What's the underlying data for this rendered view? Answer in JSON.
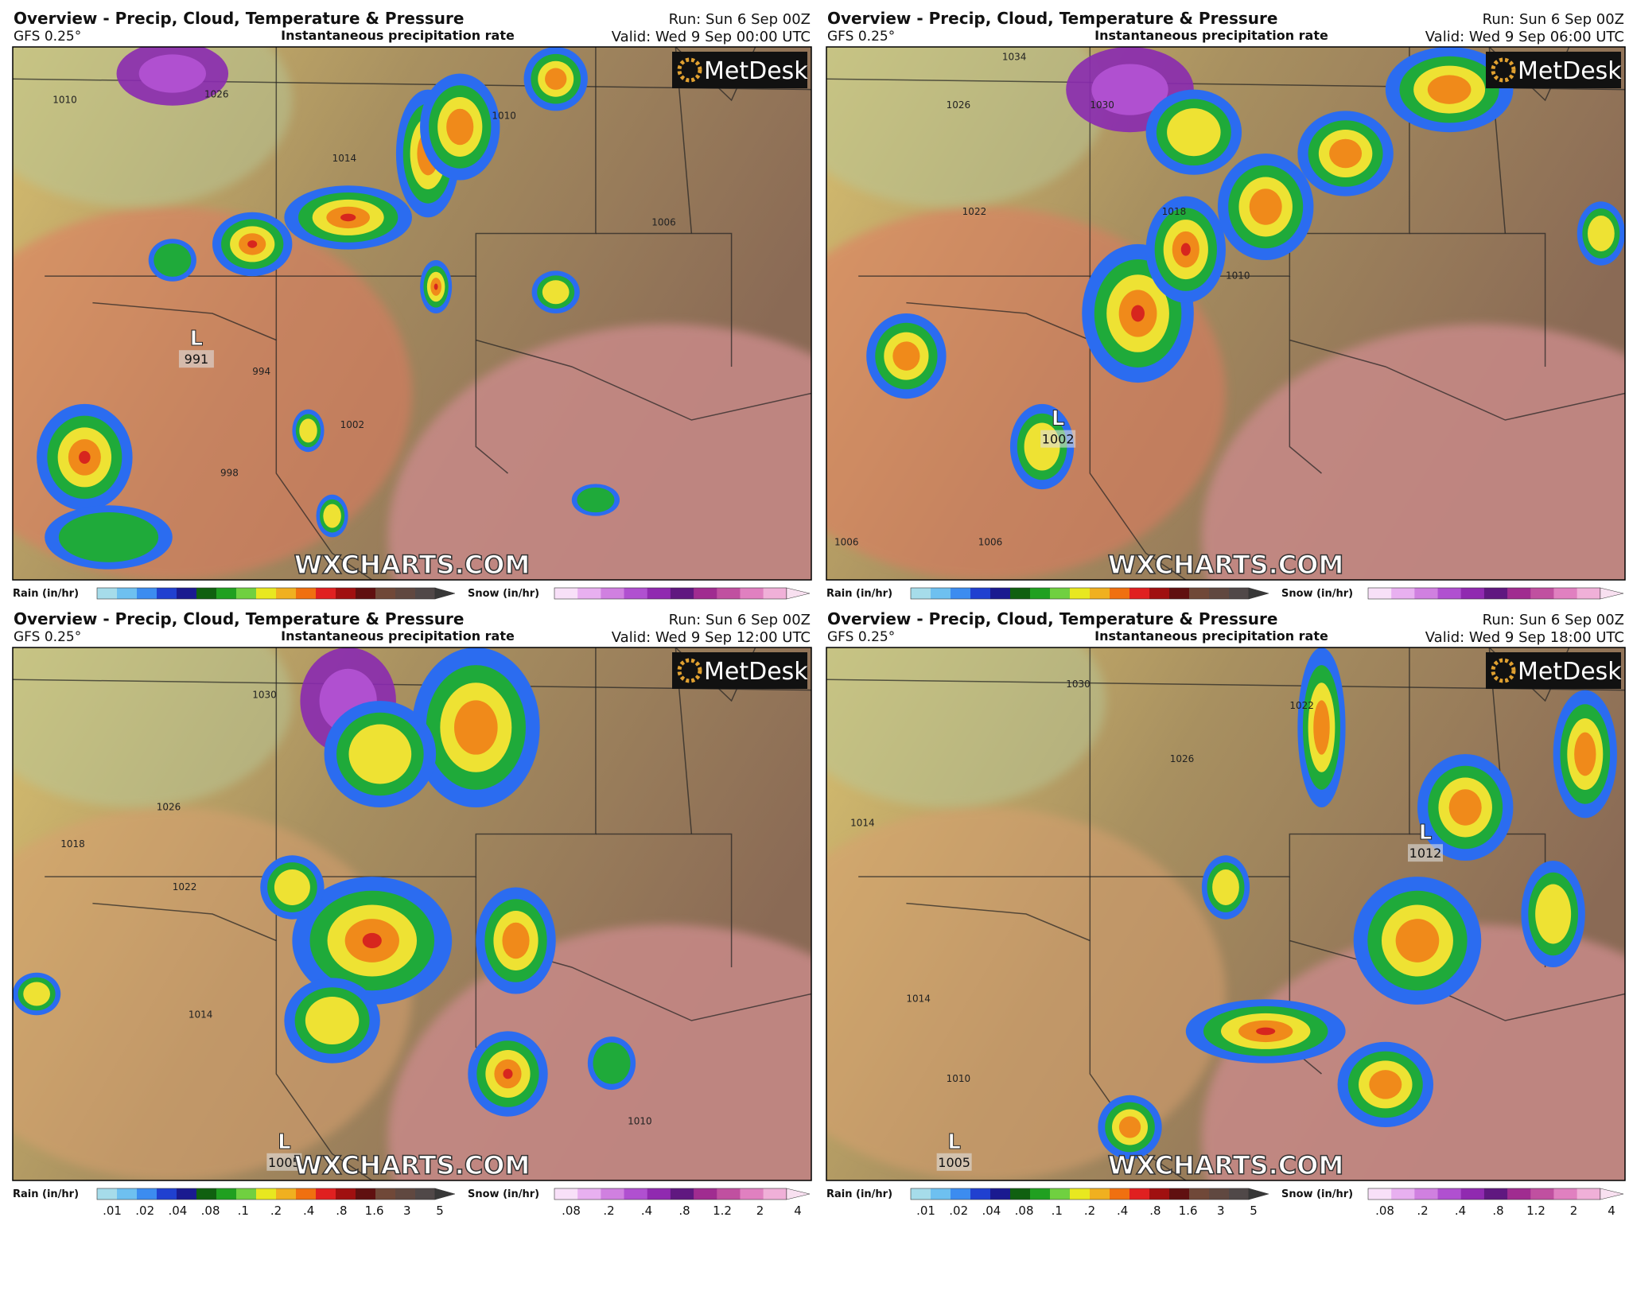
{
  "legend": {
    "rain_label": "Rain (in/hr)",
    "snow_label": "Snow (in/hr)",
    "rain_ticks": [
      ".01",
      ".02",
      ".04",
      ".08",
      ".1",
      ".2",
      ".4",
      ".8",
      "1.6",
      "3",
      "5"
    ],
    "snow_ticks": [
      ".08",
      ".2",
      ".4",
      ".8",
      "1.2",
      "2",
      "4"
    ],
    "rain_colors": [
      "#a6dcea",
      "#6ec0f0",
      "#3c8cf0",
      "#2040d0",
      "#1a1a90",
      "#106010",
      "#20a020",
      "#70d040",
      "#e8e820",
      "#f0b020",
      "#f07010",
      "#e02020",
      "#a01010",
      "#601010",
      "#704838",
      "#604840",
      "#504848",
      "#383838"
    ],
    "snow_colors": [
      "#f8e0f8",
      "#e8b0f0",
      "#d080e0",
      "#b050d0",
      "#902ab0",
      "#601880",
      "#a02c90",
      "#c050a0",
      "#e080c0",
      "#f0b0d8",
      "#f8e0f0"
    ]
  },
  "panels": [
    {
      "title": "Overview - Precip, Cloud, Temperature & Pressure",
      "model": "GFS 0.25°",
      "product": "Instantaneous precipitation rate",
      "run": "Run: Sun 6 Sep 00Z",
      "valid": "Valid: Wed 9 Sep 00:00 UTC",
      "logo": "MetDesk",
      "watermark": "WXCHARTS.COM",
      "show_ticks": false,
      "lows": [
        {
          "symbol": "L",
          "pressure": 991
        }
      ],
      "isobars": [
        1010,
        1026,
        1014,
        1010,
        1006,
        994,
        998,
        1002
      ]
    },
    {
      "title": "Overview - Precip, Cloud, Temperature & Pressure",
      "model": "GFS 0.25°",
      "product": "Instantaneous precipitation rate",
      "run": "Run: Sun 6 Sep 00Z",
      "valid": "Valid: Wed 9 Sep 06:00 UTC",
      "logo": "MetDesk",
      "watermark": "WXCHARTS.COM",
      "show_ticks": false,
      "lows": [
        {
          "symbol": "L",
          "pressure": 1002
        }
      ],
      "isobars": [
        1034,
        1026,
        1030,
        1022,
        1018,
        1010,
        1006,
        1006
      ]
    },
    {
      "title": "Overview - Precip, Cloud, Temperature & Pressure",
      "model": "GFS 0.25°",
      "product": "Instantaneous precipitation rate",
      "run": "Run: Sun 6 Sep 00Z",
      "valid": "Valid: Wed 9 Sep 12:00 UTC",
      "logo": "MetDesk",
      "watermark": "WXCHARTS.COM",
      "show_ticks": true,
      "lows": [
        {
          "symbol": "L",
          "pressure": 1005
        }
      ],
      "isobars": [
        1030,
        1026,
        1018,
        1022,
        1014,
        1010
      ]
    },
    {
      "title": "Overview - Precip, Cloud, Temperature & Pressure",
      "model": "GFS 0.25°",
      "product": "Instantaneous precipitation rate",
      "run": "Run: Sun 6 Sep 00Z",
      "valid": "Valid: Wed 9 Sep 18:00 UTC",
      "logo": "MetDesk",
      "watermark": "WXCHARTS.COM",
      "show_ticks": true,
      "lows": [
        {
          "symbol": "L",
          "pressure": 1012
        },
        {
          "symbol": "L",
          "pressure": 1005
        }
      ],
      "isobars": [
        1030,
        1022,
        1026,
        1014,
        1014,
        1010
      ]
    }
  ]
}
